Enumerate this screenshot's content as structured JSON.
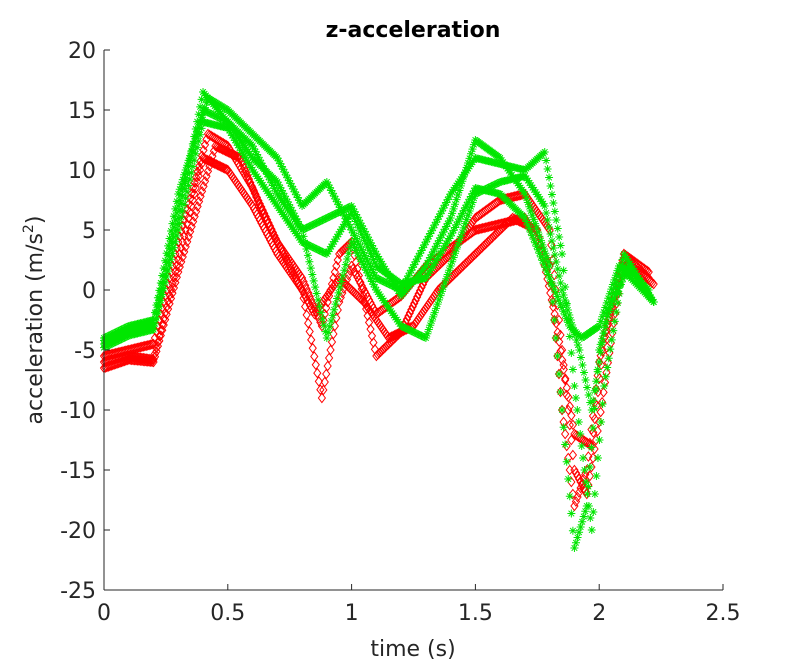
{
  "chart_data": {
    "type": "scatter",
    "title": "z-acceleration",
    "xlabel": "time (s)",
    "ylabel_prefix": "acceleration (m/s",
    "ylabel_sup": "2",
    "ylabel_suffix": ")",
    "xlim": [
      0,
      2.5
    ],
    "ylim": [
      -25,
      20
    ],
    "xticks": [
      0,
      0.5,
      1,
      1.5,
      2,
      2.5
    ],
    "xtick_labels": [
      "0",
      "0.5",
      "1",
      "1.5",
      "2",
      "2.5"
    ],
    "yticks": [
      -25,
      -20,
      -15,
      -10,
      -5,
      0,
      5,
      10,
      15,
      20
    ],
    "ytick_labels": [
      "-25",
      "-20",
      "-15",
      "-10",
      "-5",
      "0",
      "5",
      "10",
      "15",
      "20"
    ],
    "grid": false,
    "legend": "none",
    "series": [
      {
        "marker": "diamond-open",
        "color": "#ff0000",
        "values": [
          {
            "x": 0.0,
            "y": -6.0
          },
          {
            "x": 0.1,
            "y": -5.5
          },
          {
            "x": 0.2,
            "y": -5.8
          },
          {
            "x": 0.3,
            "y": 2.5
          },
          {
            "x": 0.4,
            "y": 11.0
          },
          {
            "x": 0.5,
            "y": 10.0
          },
          {
            "x": 0.6,
            "y": 7.0
          },
          {
            "x": 0.7,
            "y": 3.0
          },
          {
            "x": 0.8,
            "y": 0.0
          },
          {
            "x": 0.88,
            "y": -9.0
          },
          {
            "x": 0.95,
            "y": -1.0
          },
          {
            "x": 1.0,
            "y": 2.0
          },
          {
            "x": 1.1,
            "y": -2.0
          },
          {
            "x": 1.2,
            "y": -0.5
          },
          {
            "x": 1.3,
            "y": 2.0
          },
          {
            "x": 1.4,
            "y": 3.5
          },
          {
            "x": 1.5,
            "y": 5.0
          },
          {
            "x": 1.6,
            "y": 5.5
          },
          {
            "x": 1.7,
            "y": 6.0
          },
          {
            "x": 1.8,
            "y": 2.0
          },
          {
            "x": 1.85,
            "y": -10.0
          },
          {
            "x": 1.9,
            "y": -18.0
          },
          {
            "x": 1.95,
            "y": -15.0
          },
          {
            "x": 2.0,
            "y": -6.0
          },
          {
            "x": 2.1,
            "y": 3.0
          },
          {
            "x": 2.2,
            "y": 1.0
          }
        ]
      },
      {
        "marker": "diamond-open",
        "color": "#ff0000",
        "values": [
          {
            "x": 0.0,
            "y": -5.5
          },
          {
            "x": 0.1,
            "y": -5.0
          },
          {
            "x": 0.2,
            "y": -4.5
          },
          {
            "x": 0.3,
            "y": 4.0
          },
          {
            "x": 0.42,
            "y": 13.0
          },
          {
            "x": 0.5,
            "y": 12.0
          },
          {
            "x": 0.6,
            "y": 8.5
          },
          {
            "x": 0.7,
            "y": 4.0
          },
          {
            "x": 0.8,
            "y": 1.0
          },
          {
            "x": 0.88,
            "y": -3.0
          },
          {
            "x": 0.95,
            "y": 3.0
          },
          {
            "x": 1.0,
            "y": 4.0
          },
          {
            "x": 1.1,
            "y": -5.5
          },
          {
            "x": 1.2,
            "y": -3.5
          },
          {
            "x": 1.3,
            "y": 1.0
          },
          {
            "x": 1.4,
            "y": 3.0
          },
          {
            "x": 1.5,
            "y": 6.0
          },
          {
            "x": 1.6,
            "y": 7.5
          },
          {
            "x": 1.7,
            "y": 8.0
          },
          {
            "x": 1.8,
            "y": 5.0
          },
          {
            "x": 1.85,
            "y": -5.0
          },
          {
            "x": 1.9,
            "y": -15.0
          },
          {
            "x": 1.95,
            "y": -17.0
          },
          {
            "x": 2.0,
            "y": -11.0
          },
          {
            "x": 2.1,
            "y": 3.0
          },
          {
            "x": 2.2,
            "y": 1.5
          }
        ]
      },
      {
        "marker": "diamond-open",
        "color": "#ff0000",
        "values": [
          {
            "x": 0.0,
            "y": -6.5
          },
          {
            "x": 0.1,
            "y": -5.8
          },
          {
            "x": 0.2,
            "y": -6.0
          },
          {
            "x": 0.3,
            "y": 1.5
          },
          {
            "x": 0.45,
            "y": 12.0
          },
          {
            "x": 0.55,
            "y": 11.0
          },
          {
            "x": 0.65,
            "y": 6.0
          },
          {
            "x": 0.75,
            "y": 2.0
          },
          {
            "x": 0.85,
            "y": -2.0
          },
          {
            "x": 0.95,
            "y": 1.0
          },
          {
            "x": 1.05,
            "y": -1.0
          },
          {
            "x": 1.15,
            "y": -4.0
          },
          {
            "x": 1.25,
            "y": -3.0
          },
          {
            "x": 1.35,
            "y": 0.0
          },
          {
            "x": 1.45,
            "y": 2.0
          },
          {
            "x": 1.55,
            "y": 4.0
          },
          {
            "x": 1.65,
            "y": 6.0
          },
          {
            "x": 1.75,
            "y": 5.0
          },
          {
            "x": 1.82,
            "y": -2.0
          },
          {
            "x": 1.9,
            "y": -12.0
          },
          {
            "x": 1.97,
            "y": -13.0
          },
          {
            "x": 2.02,
            "y": -4.0
          },
          {
            "x": 2.1,
            "y": 2.5
          },
          {
            "x": 2.22,
            "y": 0.5
          }
        ]
      },
      {
        "marker": "asterisk",
        "color": "#00e600",
        "values": [
          {
            "x": 0.0,
            "y": -4.5
          },
          {
            "x": 0.1,
            "y": -3.5
          },
          {
            "x": 0.2,
            "y": -3.0
          },
          {
            "x": 0.3,
            "y": 6.0
          },
          {
            "x": 0.4,
            "y": 16.5
          },
          {
            "x": 0.5,
            "y": 14.0
          },
          {
            "x": 0.6,
            "y": 12.0
          },
          {
            "x": 0.7,
            "y": 8.0
          },
          {
            "x": 0.8,
            "y": 5.0
          },
          {
            "x": 0.9,
            "y": 6.0
          },
          {
            "x": 1.0,
            "y": 7.0
          },
          {
            "x": 1.1,
            "y": 3.0
          },
          {
            "x": 1.2,
            "y": -0.5
          },
          {
            "x": 1.3,
            "y": 2.0
          },
          {
            "x": 1.4,
            "y": 6.0
          },
          {
            "x": 1.5,
            "y": 12.5
          },
          {
            "x": 1.6,
            "y": 11.0
          },
          {
            "x": 1.7,
            "y": 8.0
          },
          {
            "x": 1.8,
            "y": 2.0
          },
          {
            "x": 1.85,
            "y": -10.0
          },
          {
            "x": 1.9,
            "y": -21.5
          },
          {
            "x": 1.95,
            "y": -18.0
          },
          {
            "x": 2.0,
            "y": -5.0
          },
          {
            "x": 2.1,
            "y": 3.0
          },
          {
            "x": 2.22,
            "y": -1.0
          }
        ]
      },
      {
        "marker": "asterisk",
        "color": "#00e600",
        "values": [
          {
            "x": 0.0,
            "y": -4.0
          },
          {
            "x": 0.1,
            "y": -3.0
          },
          {
            "x": 0.2,
            "y": -2.5
          },
          {
            "x": 0.3,
            "y": 8.0
          },
          {
            "x": 0.42,
            "y": 16.0
          },
          {
            "x": 0.5,
            "y": 15.0
          },
          {
            "x": 0.6,
            "y": 13.0
          },
          {
            "x": 0.7,
            "y": 11.0
          },
          {
            "x": 0.8,
            "y": 7.0
          },
          {
            "x": 0.9,
            "y": 9.0
          },
          {
            "x": 1.0,
            "y": 5.0
          },
          {
            "x": 1.1,
            "y": 1.0
          },
          {
            "x": 1.2,
            "y": 0.0
          },
          {
            "x": 1.3,
            "y": 4.0
          },
          {
            "x": 1.4,
            "y": 8.0
          },
          {
            "x": 1.5,
            "y": 11.0
          },
          {
            "x": 1.6,
            "y": 10.5
          },
          {
            "x": 1.7,
            "y": 10.0
          },
          {
            "x": 1.78,
            "y": 11.5
          },
          {
            "x": 1.85,
            "y": 3.0
          },
          {
            "x": 1.9,
            "y": -8.0
          },
          {
            "x": 1.97,
            "y": -20.0
          },
          {
            "x": 2.02,
            "y": -8.0
          },
          {
            "x": 2.1,
            "y": 2.0
          },
          {
            "x": 2.2,
            "y": 0.0
          }
        ]
      },
      {
        "marker": "asterisk",
        "color": "#00e600",
        "values": [
          {
            "x": 0.0,
            "y": -4.2
          },
          {
            "x": 0.1,
            "y": -3.2
          },
          {
            "x": 0.2,
            "y": -3.0
          },
          {
            "x": 0.3,
            "y": 7.0
          },
          {
            "x": 0.4,
            "y": 15.0
          },
          {
            "x": 0.5,
            "y": 14.0
          },
          {
            "x": 0.6,
            "y": 11.0
          },
          {
            "x": 0.7,
            "y": 9.0
          },
          {
            "x": 0.8,
            "y": 5.0
          },
          {
            "x": 0.9,
            "y": -4.0
          },
          {
            "x": 1.0,
            "y": 4.0
          },
          {
            "x": 1.1,
            "y": 0.0
          },
          {
            "x": 1.2,
            "y": -3.0
          },
          {
            "x": 1.3,
            "y": -4.0
          },
          {
            "x": 1.4,
            "y": 2.0
          },
          {
            "x": 1.5,
            "y": 8.0
          },
          {
            "x": 1.6,
            "y": 9.0
          },
          {
            "x": 1.7,
            "y": 9.5
          },
          {
            "x": 1.78,
            "y": 7.0
          },
          {
            "x": 1.85,
            "y": 0.0
          },
          {
            "x": 1.92,
            "y": -5.0
          },
          {
            "x": 1.97,
            "y": -10.0
          },
          {
            "x": 2.03,
            "y": -2.0
          },
          {
            "x": 2.12,
            "y": 2.0
          },
          {
            "x": 2.22,
            "y": -1.0
          }
        ]
      },
      {
        "marker": "asterisk",
        "color": "#00e600",
        "values": [
          {
            "x": 0.0,
            "y": -4.8
          },
          {
            "x": 0.1,
            "y": -3.8
          },
          {
            "x": 0.2,
            "y": -3.3
          },
          {
            "x": 0.3,
            "y": 5.0
          },
          {
            "x": 0.4,
            "y": 14.0
          },
          {
            "x": 0.5,
            "y": 13.5
          },
          {
            "x": 0.6,
            "y": 10.0
          },
          {
            "x": 0.7,
            "y": 7.0
          },
          {
            "x": 0.8,
            "y": 4.0
          },
          {
            "x": 0.9,
            "y": 3.0
          },
          {
            "x": 1.0,
            "y": 6.5
          },
          {
            "x": 1.1,
            "y": 2.0
          },
          {
            "x": 1.2,
            "y": 0.5
          },
          {
            "x": 1.3,
            "y": 1.0
          },
          {
            "x": 1.4,
            "y": 4.5
          },
          {
            "x": 1.5,
            "y": 8.5
          },
          {
            "x": 1.6,
            "y": 8.0
          },
          {
            "x": 1.7,
            "y": 6.0
          },
          {
            "x": 1.8,
            "y": 1.0
          },
          {
            "x": 1.88,
            "y": -3.0
          },
          {
            "x": 1.93,
            "y": -4.0
          },
          {
            "x": 2.0,
            "y": -3.0
          },
          {
            "x": 2.08,
            "y": 2.0
          },
          {
            "x": 2.22,
            "y": -1.0
          }
        ]
      }
    ]
  }
}
